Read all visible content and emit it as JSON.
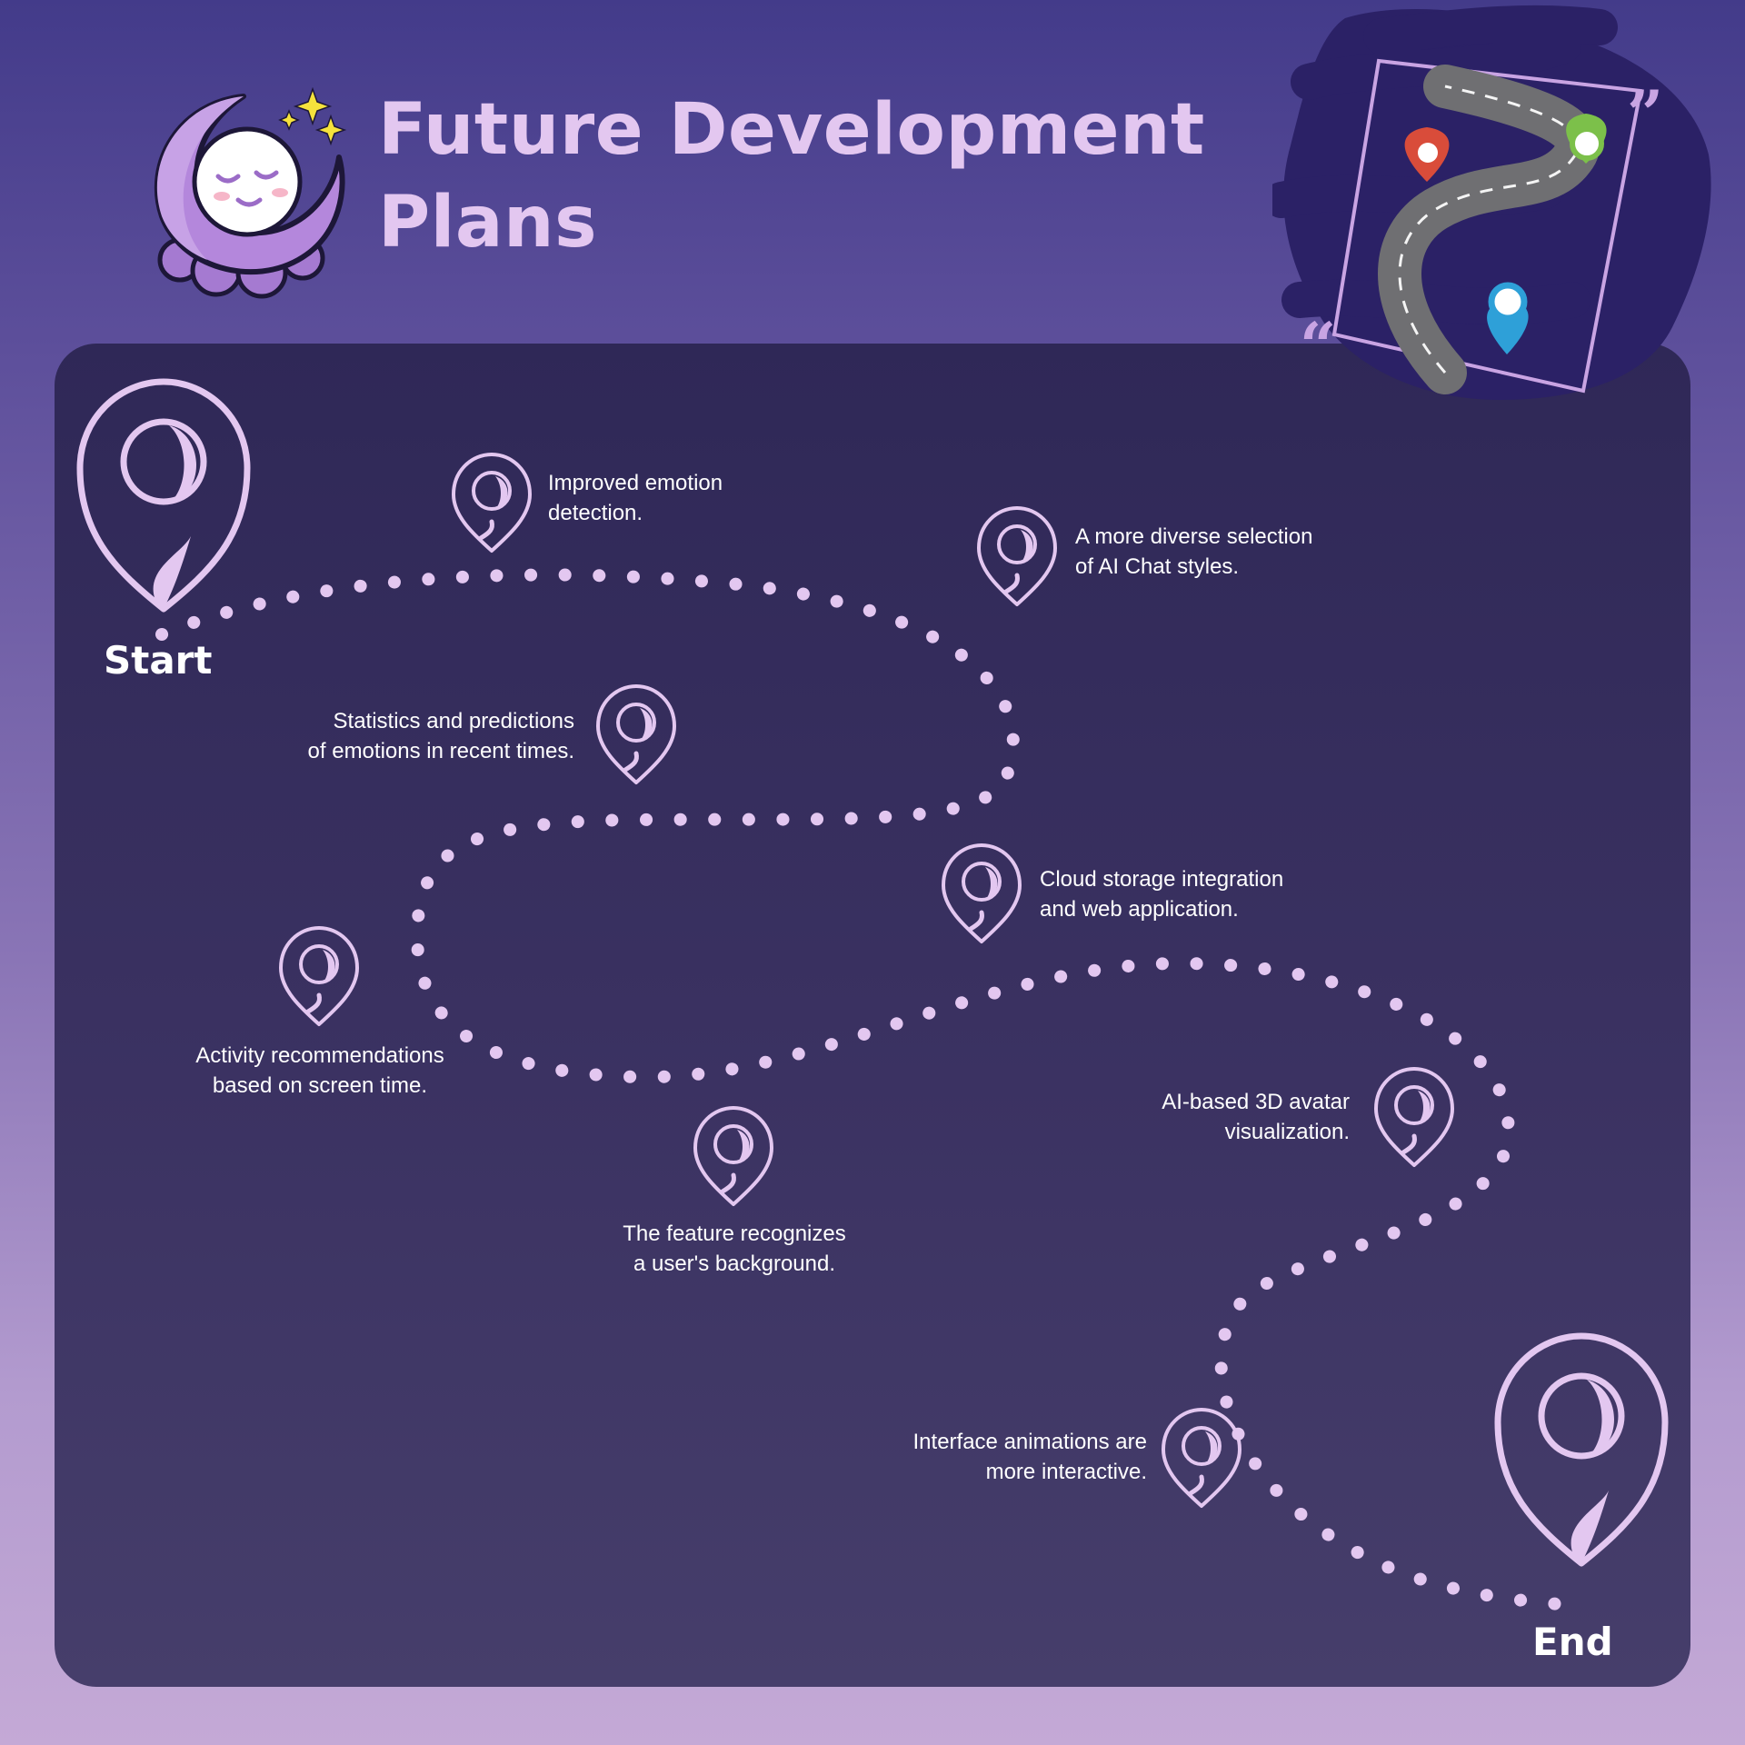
{
  "title": {
    "line1": "Future Development",
    "line2": "Plans"
  },
  "start_label": "Start",
  "end_label": "End",
  "milestones": [
    {
      "line1": "Improved emotion",
      "line2": "detection."
    },
    {
      "line1": "A more diverse selection",
      "line2": "of AI Chat styles."
    },
    {
      "line1": "Statistics and predictions",
      "line2": "of emotions in recent times."
    },
    {
      "line1": "Cloud storage integration",
      "line2": "and web application."
    },
    {
      "line1": "Activity recommendations",
      "line2": "based on screen time."
    },
    {
      "line1": "AI-based 3D avatar",
      "line2": "visualization."
    },
    {
      "line1": "The feature recognizes",
      "line2": "a user's background."
    },
    {
      "line1": "Interface animations are",
      "line2": "more interactive."
    }
  ],
  "colors": {
    "pin": "#e3c7f0",
    "dots": "#e3c7f0",
    "panel": "#2f2857",
    "title": "#e3c7f0"
  },
  "icons": [
    "moon-logo-icon",
    "road-map-icon",
    "map-pin-icon"
  ]
}
